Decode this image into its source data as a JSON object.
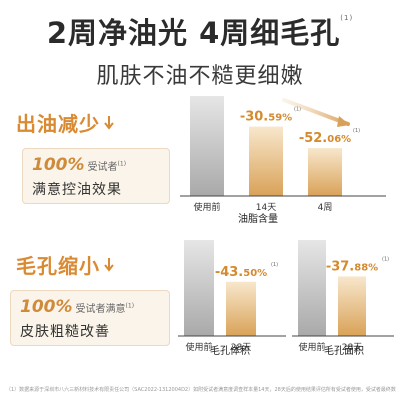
{
  "header": {
    "title_line1": "2周净油光 4周细毛孔",
    "title_note": "(1)",
    "title_line2": "肌肤不油不糙更细嫩"
  },
  "sections": [
    {
      "heading": "出油减少",
      "card_percent": "100%",
      "card_subject": "受试者",
      "card_note": "(1)",
      "card_desc": "满意控油效果"
    },
    {
      "heading": "毛孔缩小",
      "card_percent": "100%",
      "card_subject": "受试者满意",
      "card_note": "(1)",
      "card_desc": "皮肤粗糙改善"
    }
  ],
  "footnote": "（1）数据来源于深圳市八六三新材料技术有限责任公司（SAC2022-1312004D2）如附受试者满意度调查样本量14天，28天后的使用结果评估所有受试者使用，受试者最终数目为35名，受试者均自愿参加并参与全部实验测试项目（受试者满足入组条件，满足以上标准的人员，以及参与项目的人员同意）",
  "colors": {
    "accent": "#d98a32",
    "bar_gray": "#c9c9c9",
    "bar_gold": "#e2b067"
  },
  "chart_data": [
    {
      "type": "bar",
      "xlabel": "油脂含量",
      "categories": [
        "使用前",
        "14天",
        "4周"
      ],
      "values": [
        100,
        69.41,
        47.94
      ],
      "data_labels": [
        "",
        "-30.59%",
        "-52.06%"
      ],
      "data_label_note": "(1)",
      "ylim": [
        0,
        100
      ]
    },
    {
      "type": "bar",
      "xlabel": "毛孔体积",
      "categories": [
        "使用前",
        "28天"
      ],
      "values": [
        100,
        56.5
      ],
      "data_labels": [
        "",
        "-43.50%"
      ],
      "data_label_note": "(1)",
      "ylim": [
        0,
        100
      ]
    },
    {
      "type": "bar",
      "xlabel": "毛孔面积",
      "categories": [
        "使用前",
        "28天"
      ],
      "values": [
        100,
        62.12
      ],
      "data_labels": [
        "",
        "-37.88%"
      ],
      "data_label_note": "(1)",
      "ylim": [
        0,
        100
      ]
    }
  ]
}
